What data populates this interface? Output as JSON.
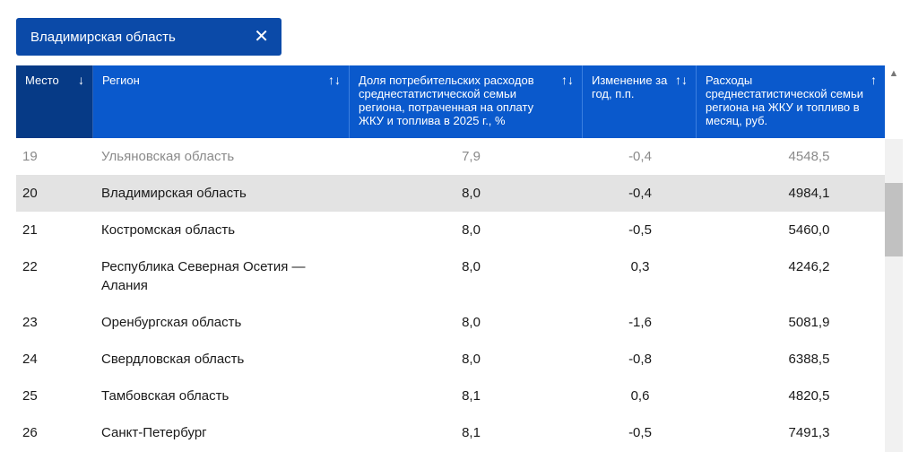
{
  "filter_chip": {
    "label": "Владимирская область",
    "close_icon": "close-icon"
  },
  "table": {
    "headers": {
      "place": "Место",
      "region": "Регион",
      "share": "Доля потребительских расходов среднестатистической семьи региона, потраченная на оплату ЖКУ и топлива в 2025 г., %",
      "change": "Изменение за год, п.п.",
      "expenses": "Расходы среднестатистической семьи региона на ЖКУ и топливо в месяц, руб."
    },
    "sort_icons": {
      "place": "↓",
      "region": "↑↓",
      "share": "↑↓",
      "change": "↑↓",
      "expenses": "↑"
    },
    "rows": [
      {
        "place": "19",
        "region": "Ульяновская область",
        "share": "7,9",
        "change": "-0,4",
        "expenses": "4548,5"
      },
      {
        "place": "20",
        "region": "Владимирская область",
        "share": "8,0",
        "change": "-0,4",
        "expenses": "4984,1"
      },
      {
        "place": "21",
        "region": "Костромская область",
        "share": "8,0",
        "change": "-0,5",
        "expenses": "5460,0"
      },
      {
        "place": "22",
        "region": "Республика Северная Осетия — Алания",
        "share": "8,0",
        "change": "0,3",
        "expenses": "4246,2"
      },
      {
        "place": "23",
        "region": "Оренбургская область",
        "share": "8,0",
        "change": "-1,6",
        "expenses": "5081,9"
      },
      {
        "place": "24",
        "region": "Свердловская область",
        "share": "8,0",
        "change": "-0,8",
        "expenses": "6388,5"
      },
      {
        "place": "25",
        "region": "Тамбовская область",
        "share": "8,1",
        "change": "0,6",
        "expenses": "4820,5"
      },
      {
        "place": "26",
        "region": "Санкт-Петербург",
        "share": "8,1",
        "change": "-0,5",
        "expenses": "7491,3"
      }
    ]
  },
  "scrollbar": {
    "up_arrow": "▲"
  }
}
